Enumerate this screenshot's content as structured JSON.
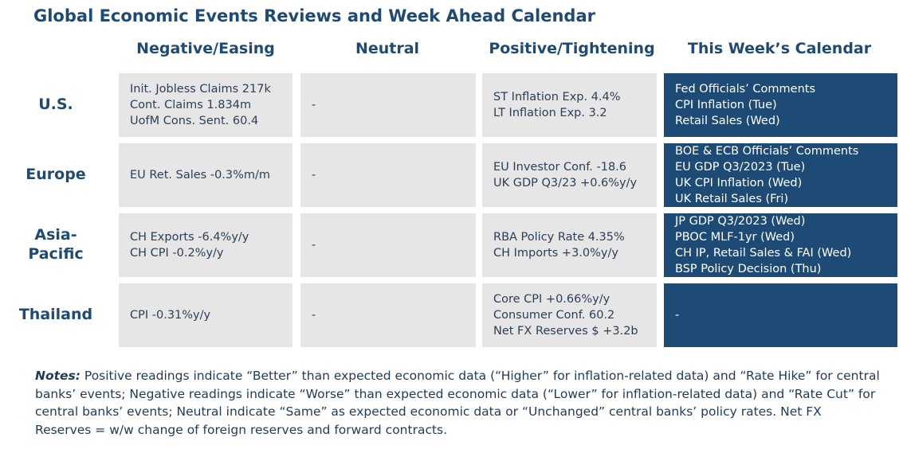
{
  "title": "Global Economic Events Reviews and Week Ahead Calendar",
  "columns": [
    "Negative/Easing",
    "Neutral",
    "Positive/Tightening",
    "This Week’s Calendar"
  ],
  "rows": [
    {
      "region": "U.S.",
      "negative": [
        "Init. Jobless Claims 217k",
        "Cont. Claims 1.834m",
        "UofM Cons. Sent. 60.4"
      ],
      "neutral": [
        "-"
      ],
      "positive": [
        "ST Inflation Exp. 4.4%",
        "LT Inflation Exp. 3.2"
      ],
      "calendar": [
        "Fed Officials’ Comments",
        "CPI Inflation (Tue)",
        "Retail Sales (Wed)"
      ]
    },
    {
      "region": "Europe",
      "negative": [
        "EU Ret. Sales -0.3%m/m"
      ],
      "neutral": [
        "-"
      ],
      "positive": [
        "EU Investor Conf. -18.6",
        "UK GDP Q3/23 +0.6%y/y"
      ],
      "calendar": [
        "BOE & ECB Officials’ Comments",
        "EU GDP Q3/2023 (Tue)",
        "UK CPI Inflation (Wed)",
        "UK Retail Sales (Fri)"
      ]
    },
    {
      "region": "Asia-Pacific",
      "region_lines": [
        "Asia-",
        "Pacific"
      ],
      "negative": [
        "CH Exports -6.4%y/y",
        "CH CPI -0.2%y/y"
      ],
      "neutral": [
        "-"
      ],
      "positive": [
        "RBA Policy Rate 4.35%",
        "CH Imports +3.0%y/y"
      ],
      "calendar": [
        "JP GDP Q3/2023 (Wed)",
        "PBOC MLF-1yr (Wed)",
        "CH IP, Retail Sales & FAI (Wed)",
        "BSP Policy Decision (Thu)"
      ]
    },
    {
      "region": "Thailand",
      "negative": [
        "CPI -0.31%y/y"
      ],
      "neutral": [
        "-"
      ],
      "positive": [
        "Core CPI +0.66%y/y",
        "Consumer Conf. 60.2",
        "Net FX Reserves $ +3.2b"
      ],
      "calendar": [
        "-"
      ]
    }
  ],
  "notes": {
    "label": "Notes:",
    "text": " Positive readings indicate “Better” than expected economic data (“Higher” for inflation-related data) and “Rate Hike” for central banks’ events; Negative readings indicate “Worse” than expected economic data (“Lower” for inflation-related data) and “Rate Cut” for central banks’ events; Neutral indicate “Same” as expected economic data or “Unchanged” central banks’ policy rates. Net FX Reserves = w/w change of foreign reserves and forward contracts."
  },
  "colors": {
    "header_text": "#1f4a73",
    "cell_bg": "#e6e6e6",
    "calendar_bg": "#1e4b75",
    "calendar_text": "#ffffff"
  }
}
